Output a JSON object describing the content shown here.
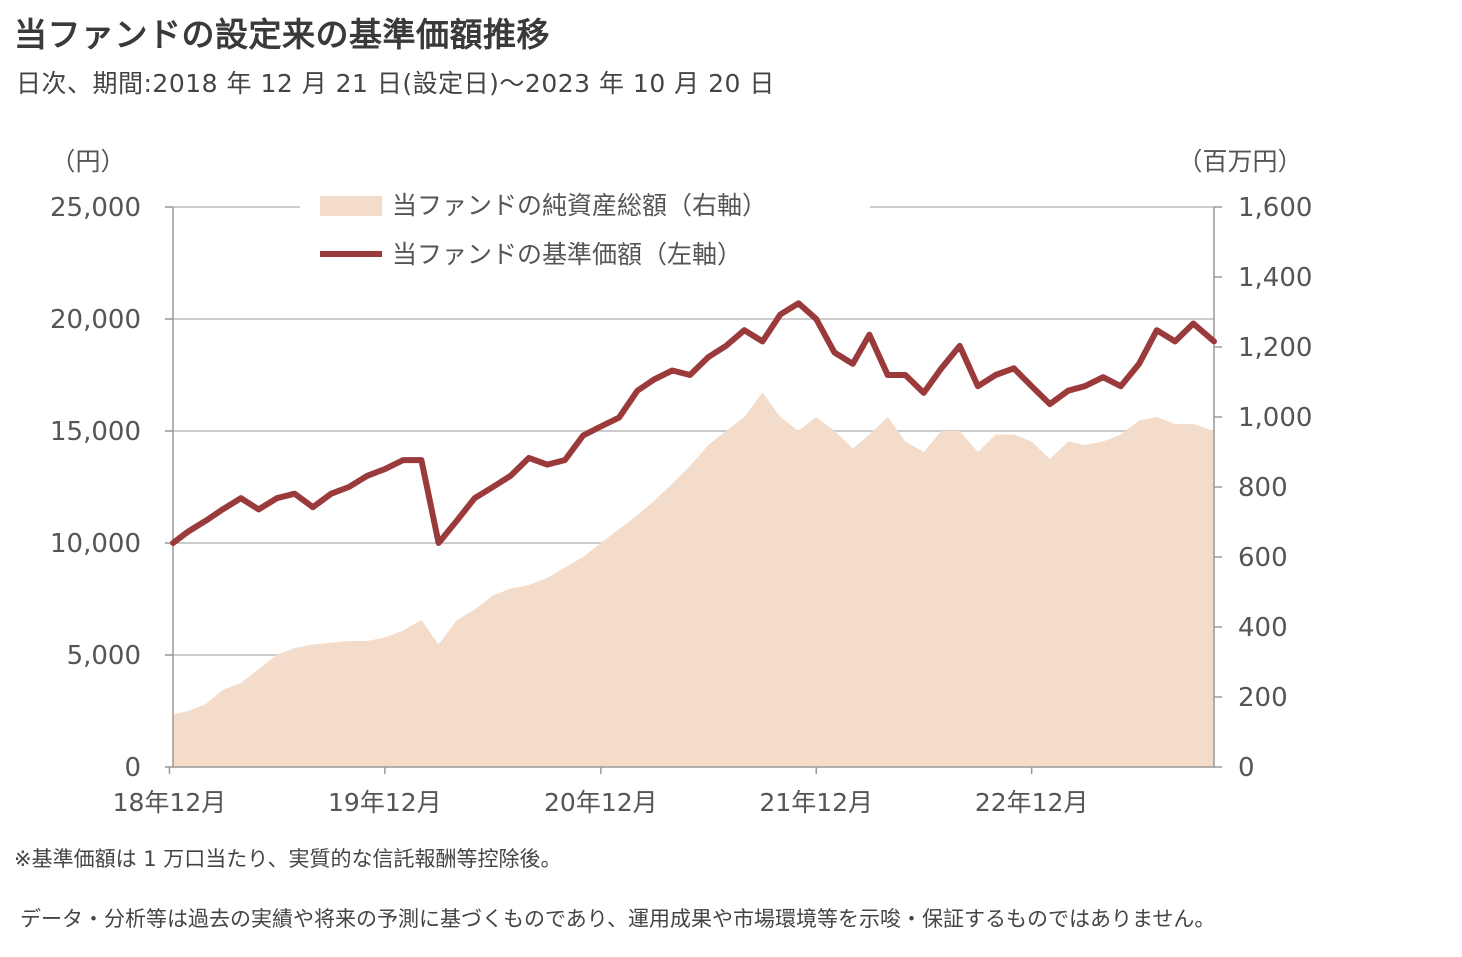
{
  "header": {
    "title": "当ファンドの設定来の基準価額推移",
    "subtitle": "日次、期間:2018 年 12 月 21 日(設定日)～2023 年 10 月 20 日"
  },
  "footnotes": {
    "note1": "※基準価額は 1 万口当たり、実質的な信託報酬等控除後。",
    "note2": "データ・分析等は過去の実績や将来の予測に基づくものであり、運用成果や市場環境等を示唆・保証するものではありません。"
  },
  "colors": {
    "nav_line": "#9b3a3a",
    "aum_area": "#f4dccb",
    "grid": "#cccccc"
  },
  "chart_data": {
    "type": "line",
    "left_unit": "（円）",
    "right_unit": "（百万円）",
    "x_ticks": [
      "18年12月",
      "19年12月",
      "20年12月",
      "21年12月",
      "22年12月"
    ],
    "x_tick_dates": [
      "2018-12",
      "2019-12",
      "2020-12",
      "2021-12",
      "2022-12"
    ],
    "y_left_ticks": [
      "0",
      "5,000",
      "10,000",
      "15,000",
      "20,000",
      "25,000"
    ],
    "y_right_ticks": [
      "0",
      "200",
      "400",
      "600",
      "800",
      "1,000",
      "1,200",
      "1,400",
      "1,600"
    ],
    "ylim_left": [
      0,
      25000
    ],
    "ylim_right": [
      0,
      1600
    ],
    "xlim": [
      "2018-12-21",
      "2023-10-20"
    ],
    "grid": "horizontal",
    "legend_position": "top-center",
    "series": [
      {
        "name": "当ファンドの純資産総額（右軸）",
        "axis": "right",
        "style": "area",
        "points": [
          [
            "2018-12-21",
            150
          ],
          [
            "2019-01",
            160
          ],
          [
            "2019-02",
            180
          ],
          [
            "2019-03",
            220
          ],
          [
            "2019-04",
            240
          ],
          [
            "2019-05",
            280
          ],
          [
            "2019-06",
            320
          ],
          [
            "2019-07",
            340
          ],
          [
            "2019-08",
            350
          ],
          [
            "2019-09",
            355
          ],
          [
            "2019-10",
            360
          ],
          [
            "2019-11",
            360
          ],
          [
            "2019-12",
            370
          ],
          [
            "2020-01",
            390
          ],
          [
            "2020-02",
            420
          ],
          [
            "2020-03",
            350
          ],
          [
            "2020-04",
            420
          ],
          [
            "2020-05",
            450
          ],
          [
            "2020-06",
            490
          ],
          [
            "2020-07",
            510
          ],
          [
            "2020-08",
            520
          ],
          [
            "2020-09",
            540
          ],
          [
            "2020-10",
            570
          ],
          [
            "2020-11",
            600
          ],
          [
            "2020-12",
            640
          ],
          [
            "2021-01",
            680
          ],
          [
            "2021-02",
            720
          ],
          [
            "2021-03",
            760
          ],
          [
            "2021-04",
            810
          ],
          [
            "2021-05",
            860
          ],
          [
            "2021-06",
            920
          ],
          [
            "2021-07",
            960
          ],
          [
            "2021-08",
            1000
          ],
          [
            "2021-09",
            1070
          ],
          [
            "2021-10",
            1000
          ],
          [
            "2021-11",
            960
          ],
          [
            "2021-12",
            1000
          ],
          [
            "2022-01",
            960
          ],
          [
            "2022-02",
            910
          ],
          [
            "2022-03",
            950
          ],
          [
            "2022-04",
            1000
          ],
          [
            "2022-05",
            930
          ],
          [
            "2022-06",
            900
          ],
          [
            "2022-07",
            960
          ],
          [
            "2022-08",
            960
          ],
          [
            "2022-09",
            900
          ],
          [
            "2022-10",
            950
          ],
          [
            "2022-11",
            950
          ],
          [
            "2022-12",
            930
          ],
          [
            "2023-01",
            880
          ],
          [
            "2023-02",
            930
          ],
          [
            "2023-03",
            920
          ],
          [
            "2023-04",
            930
          ],
          [
            "2023-05",
            950
          ],
          [
            "2023-06",
            990
          ],
          [
            "2023-07",
            1000
          ],
          [
            "2023-08",
            980
          ],
          [
            "2023-09",
            980
          ],
          [
            "2023-10-20",
            960
          ]
        ]
      },
      {
        "name": "当ファンドの基準価額（左軸）",
        "axis": "left",
        "style": "line",
        "points": [
          [
            "2018-12-21",
            10000
          ],
          [
            "2019-01",
            10500
          ],
          [
            "2019-02",
            11000
          ],
          [
            "2019-03",
            11500
          ],
          [
            "2019-04",
            12000
          ],
          [
            "2019-05",
            11500
          ],
          [
            "2019-06",
            12000
          ],
          [
            "2019-07",
            12200
          ],
          [
            "2019-08",
            11600
          ],
          [
            "2019-09",
            12200
          ],
          [
            "2019-10",
            12500
          ],
          [
            "2019-11",
            13000
          ],
          [
            "2019-12",
            13300
          ],
          [
            "2020-01",
            13700
          ],
          [
            "2020-02",
            13700
          ],
          [
            "2020-03",
            10000
          ],
          [
            "2020-04",
            11000
          ],
          [
            "2020-05",
            12000
          ],
          [
            "2020-06",
            12500
          ],
          [
            "2020-07",
            13000
          ],
          [
            "2020-08",
            13800
          ],
          [
            "2020-09",
            13500
          ],
          [
            "2020-10",
            13700
          ],
          [
            "2020-11",
            14800
          ],
          [
            "2020-12",
            15200
          ],
          [
            "2021-01",
            15600
          ],
          [
            "2021-02",
            16800
          ],
          [
            "2021-03",
            17300
          ],
          [
            "2021-04",
            17700
          ],
          [
            "2021-05",
            17500
          ],
          [
            "2021-06",
            18300
          ],
          [
            "2021-07",
            18800
          ],
          [
            "2021-08",
            19500
          ],
          [
            "2021-09",
            19000
          ],
          [
            "2021-10",
            20200
          ],
          [
            "2021-11",
            20700
          ],
          [
            "2021-12",
            20000
          ],
          [
            "2022-01",
            18500
          ],
          [
            "2022-02",
            18000
          ],
          [
            "2022-03",
            19300
          ],
          [
            "2022-04",
            17500
          ],
          [
            "2022-05",
            17500
          ],
          [
            "2022-06",
            16700
          ],
          [
            "2022-07",
            17800
          ],
          [
            "2022-08",
            18800
          ],
          [
            "2022-09",
            17000
          ],
          [
            "2022-10",
            17500
          ],
          [
            "2022-11",
            17800
          ],
          [
            "2022-12",
            17000
          ],
          [
            "2023-01",
            16200
          ],
          [
            "2023-02",
            16800
          ],
          [
            "2023-03",
            17000
          ],
          [
            "2023-04",
            17400
          ],
          [
            "2023-05",
            17000
          ],
          [
            "2023-06",
            18000
          ],
          [
            "2023-07",
            19500
          ],
          [
            "2023-08",
            19000
          ],
          [
            "2023-09",
            19800
          ],
          [
            "2023-10-20",
            19000
          ]
        ]
      }
    ]
  }
}
